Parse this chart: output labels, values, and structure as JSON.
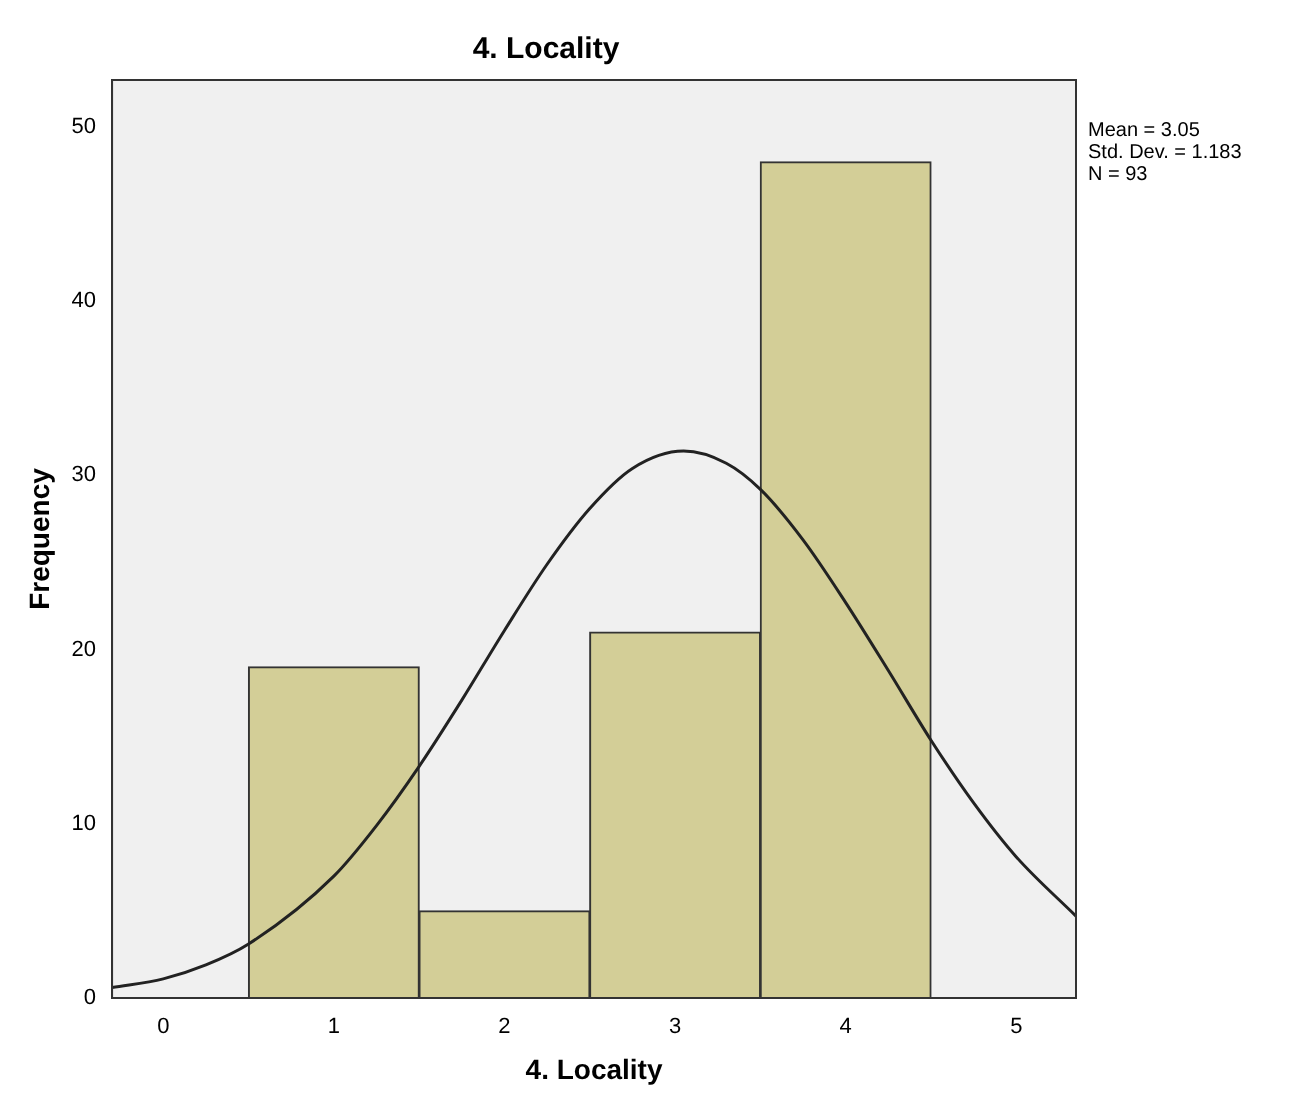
{
  "chart_data": {
    "type": "histogram",
    "title": "4. Locality",
    "xlabel": "4. Locality",
    "ylabel": "Frequency",
    "bins": [
      0.5,
      1.5,
      2.5,
      3.5,
      4.5
    ],
    "values": [
      19,
      5,
      21,
      48
    ],
    "color": "#d3ce97",
    "series": [
      {
        "type": "line",
        "color": "#222222",
        "x": [
          -0.3,
          0,
          0.25,
          0.5,
          1,
          1.25,
          1.5,
          1.75,
          2,
          2.25,
          2.5,
          2.75,
          3.05,
          3.3,
          3.5,
          3.75,
          4,
          4.25,
          4.5,
          4.75,
          5,
          5.35
        ],
        "values": [
          0.6,
          1.1,
          1.9,
          3.1,
          7.0,
          9.9,
          13.3,
          17.1,
          21.1,
          24.9,
          28.1,
          30.4,
          31.4,
          30.7,
          29.2,
          26.3,
          22.7,
          18.8,
          14.8,
          11.2,
          8.1,
          4.7
        ]
      }
    ],
    "xlim": [
      -0.3,
      5.35
    ],
    "xticks": [
      0,
      1,
      2,
      3,
      4,
      5
    ],
    "ylim": [
      0,
      52.7
    ],
    "yticks": [
      0,
      10,
      20,
      30,
      40,
      50
    ],
    "grid": false,
    "legend": false,
    "annotations": [
      "Mean = 3.05",
      "Std. Dev. = 1.183",
      "N = 93"
    ]
  }
}
